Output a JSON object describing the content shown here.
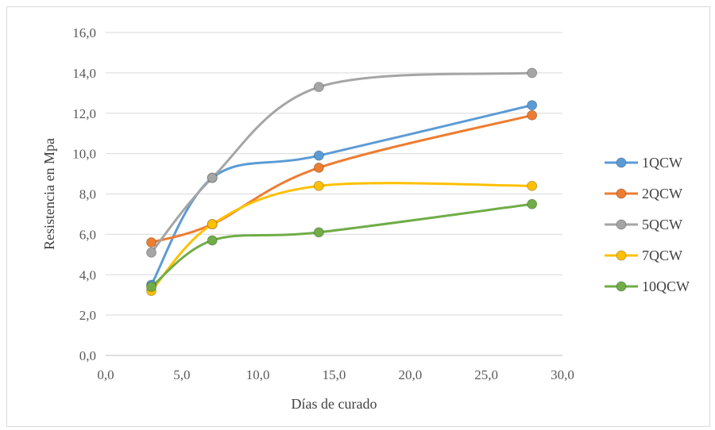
{
  "chart_data": {
    "type": "line",
    "title": "",
    "xlabel": "Días de curado",
    "ylabel": "Resistencia en Mpa",
    "xlim": [
      0,
      30
    ],
    "ylim": [
      0,
      16
    ],
    "x_ticks": [
      "0,0",
      "5,0",
      "10,0",
      "15,0",
      "20,0",
      "25,0",
      "30,0"
    ],
    "y_ticks": [
      "0,0",
      "2,0",
      "4,0",
      "6,0",
      "8,0",
      "10,0",
      "12,0",
      "14,0",
      "16,0"
    ],
    "x_tick_values": [
      0,
      5,
      10,
      15,
      20,
      25,
      30
    ],
    "y_tick_values": [
      0,
      2,
      4,
      6,
      8,
      10,
      12,
      14,
      16
    ],
    "grid": "horizontal",
    "smooth": true,
    "legend_position": "right",
    "x": [
      3,
      7,
      14,
      28
    ],
    "series": [
      {
        "name": "1QCW",
        "color": "#5b9bd5",
        "values": [
          3.5,
          8.8,
          9.9,
          12.4
        ]
      },
      {
        "name": "2QCW",
        "color": "#ed7d31",
        "values": [
          5.6,
          6.5,
          9.3,
          11.9
        ]
      },
      {
        "name": "5QCW",
        "color": "#a5a5a5",
        "values": [
          5.1,
          8.8,
          13.3,
          14.0
        ]
      },
      {
        "name": "7QCW",
        "color": "#ffc000",
        "values": [
          3.2,
          6.5,
          8.4,
          8.4
        ]
      },
      {
        "name": "10QCW",
        "color": "#70ad47",
        "values": [
          3.4,
          5.7,
          6.1,
          7.5
        ]
      }
    ]
  }
}
